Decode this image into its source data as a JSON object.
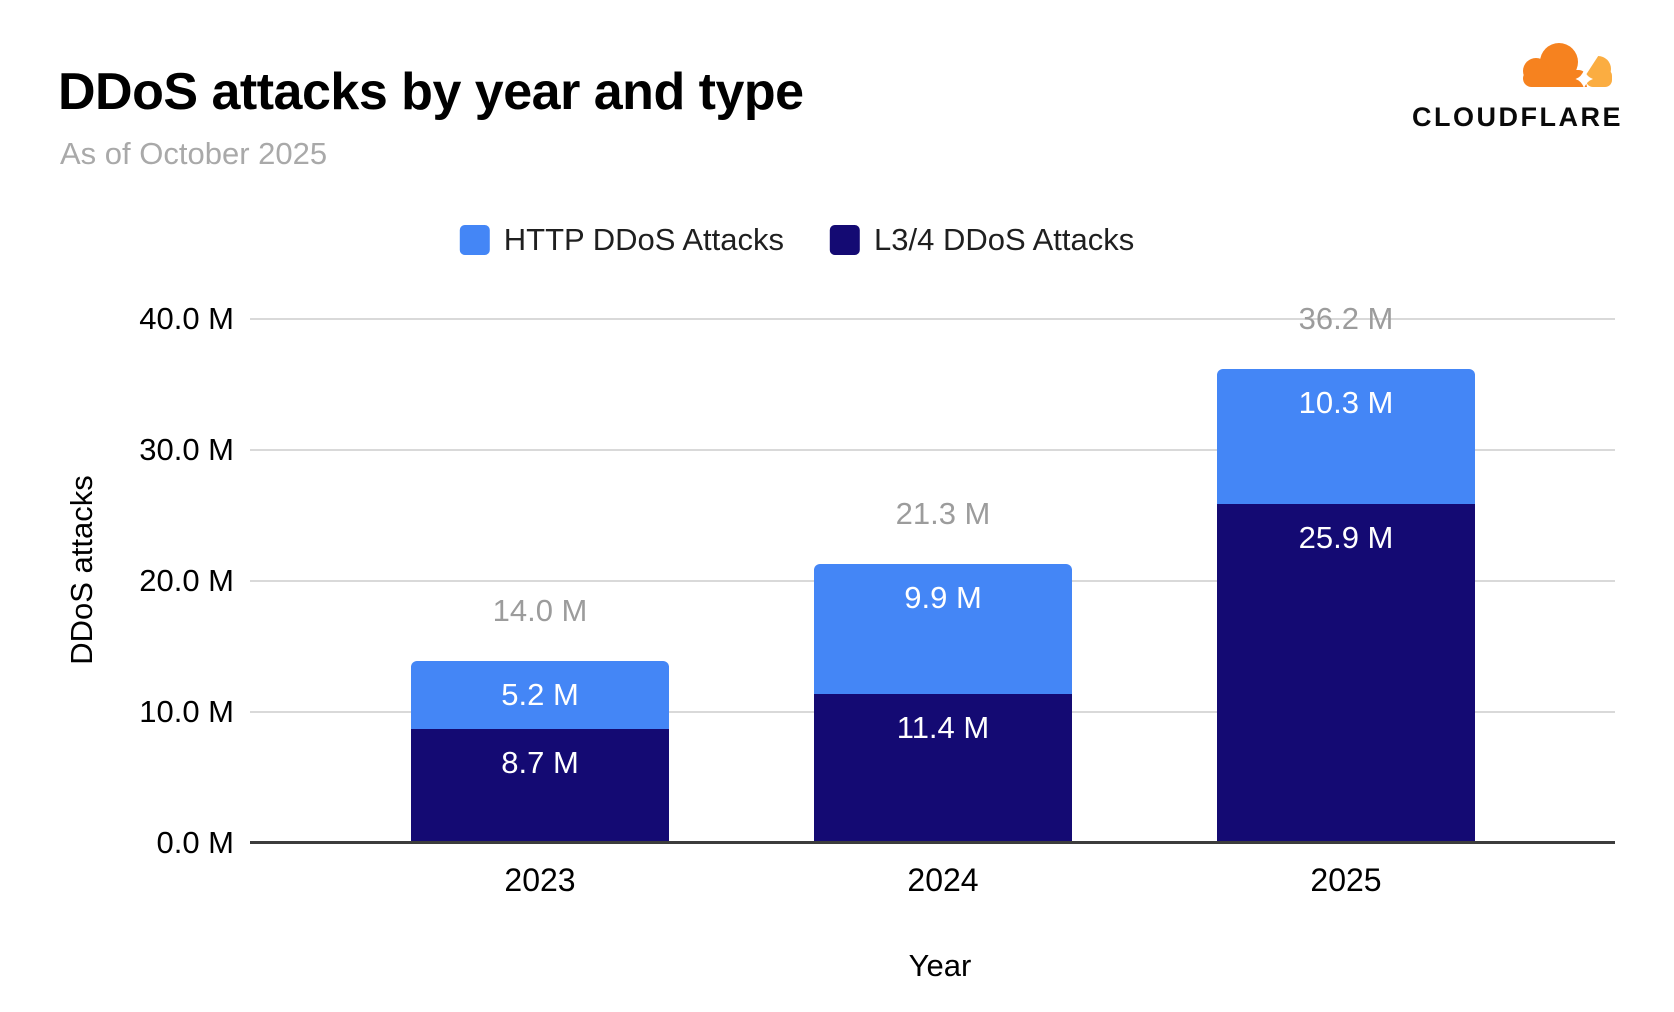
{
  "header": {
    "title": "DDoS attacks by year and type",
    "subtitle": "As of October 2025",
    "logo_text": "CLOUDFLARE"
  },
  "brand_colors": {
    "cloud_orange": "#F6821F",
    "cloud_light_orange": "#FBAD41"
  },
  "chart_data": {
    "type": "bar",
    "stacked": true,
    "title": "DDoS attacks by year and type",
    "subtitle": "As of October 2025",
    "categories": [
      "2023",
      "2024",
      "2025"
    ],
    "series": [
      {
        "name": "HTTP DDoS Attacks",
        "color": "#4486F6",
        "values": [
          5.2,
          9.9,
          10.3
        ],
        "value_labels": [
          "5.2 M",
          "9.9 M",
          "10.3 M"
        ]
      },
      {
        "name": "L3/4 DDoS Attacks",
        "color": "#140A73",
        "values": [
          8.7,
          11.4,
          25.9
        ],
        "value_labels": [
          "8.7 M",
          "11.4 M",
          "25.9 M"
        ]
      }
    ],
    "totals": [
      14.0,
      21.3,
      36.2
    ],
    "total_labels": [
      "14.0 M",
      "21.3 M",
      "36.2 M"
    ],
    "xlabel": "Year",
    "ylabel": "DDoS attacks",
    "ylim": [
      0,
      40
    ],
    "yticks": [
      {
        "value": 0,
        "label": "0.0 M"
      },
      {
        "value": 10,
        "label": "10.0 M"
      },
      {
        "value": 20,
        "label": "20.0 M"
      },
      {
        "value": 30,
        "label": "30.0 M"
      },
      {
        "value": 40,
        "label": "40.0 M"
      }
    ],
    "grid": true,
    "legend_position": "top",
    "total_label_color": "#9c9c9c",
    "gridline_color": "#d9d9d9",
    "baseline_color": "#3c3c3c"
  }
}
